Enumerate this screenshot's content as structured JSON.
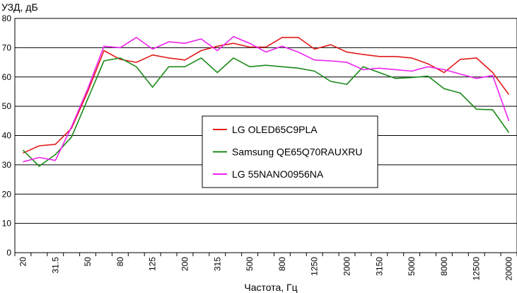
{
  "chart_data": {
    "type": "line",
    "title": "",
    "ylabel": "УЗД, дБ",
    "xlabel": "Частота, Гц",
    "ylim": [
      0,
      80
    ],
    "yticks": [
      0,
      10,
      20,
      30,
      40,
      50,
      60,
      70,
      80
    ],
    "grid": true,
    "legend_position": "center",
    "x": [
      "20",
      "25",
      "31.5",
      "40",
      "50",
      "63",
      "80",
      "100",
      "125",
      "160",
      "200",
      "250",
      "315",
      "400",
      "500",
      "630",
      "800",
      "1000",
      "1250",
      "1600",
      "2000",
      "2500",
      "3150",
      "4000",
      "5000",
      "6300",
      "8000",
      "10000",
      "12500",
      "16000",
      "20000"
    ],
    "xtick_labels": [
      "20",
      "31.5",
      "50",
      "80",
      "125",
      "200",
      "315",
      "500",
      "800",
      "1250",
      "2000",
      "3150",
      "5000",
      "8000",
      "12500",
      "20000"
    ],
    "series": [
      {
        "name": "LG OLED65C9PLA",
        "color": "#e41a1a",
        "values": [
          34.0,
          36.5,
          37.0,
          42.5,
          55.0,
          69.0,
          66.0,
          65.0,
          67.5,
          66.5,
          65.8,
          69.0,
          70.5,
          71.5,
          70.2,
          70.2,
          73.5,
          73.5,
          69.5,
          71.0,
          68.5,
          67.7,
          67.0,
          67.0,
          66.5,
          64.5,
          61.5,
          66.0,
          66.5,
          61.5,
          54.0
        ]
      },
      {
        "name": "Samsung QE65Q70RAUXRU",
        "color": "#1a8a1a",
        "values": [
          35.0,
          29.5,
          33.5,
          39.5,
          52.5,
          65.5,
          66.5,
          63.5,
          56.5,
          63.5,
          63.5,
          66.5,
          61.5,
          66.5,
          63.5,
          64.0,
          63.5,
          63.0,
          62.0,
          58.5,
          57.5,
          63.5,
          61.5,
          59.5,
          59.8,
          60.3,
          56.0,
          54.5,
          49.0,
          48.8,
          41.0
        ]
      },
      {
        "name": "LG 55NANO0956NA",
        "color": "#ee22ee",
        "values": [
          31.0,
          32.5,
          31.5,
          43.0,
          56.0,
          70.5,
          70.0,
          73.5,
          69.5,
          72.0,
          71.5,
          73.0,
          69.0,
          73.8,
          71.5,
          68.5,
          70.5,
          68.5,
          65.8,
          65.5,
          65.0,
          62.5,
          63.0,
          62.5,
          62.0,
          63.5,
          62.5,
          61.0,
          59.5,
          60.5,
          45.0
        ]
      }
    ]
  }
}
